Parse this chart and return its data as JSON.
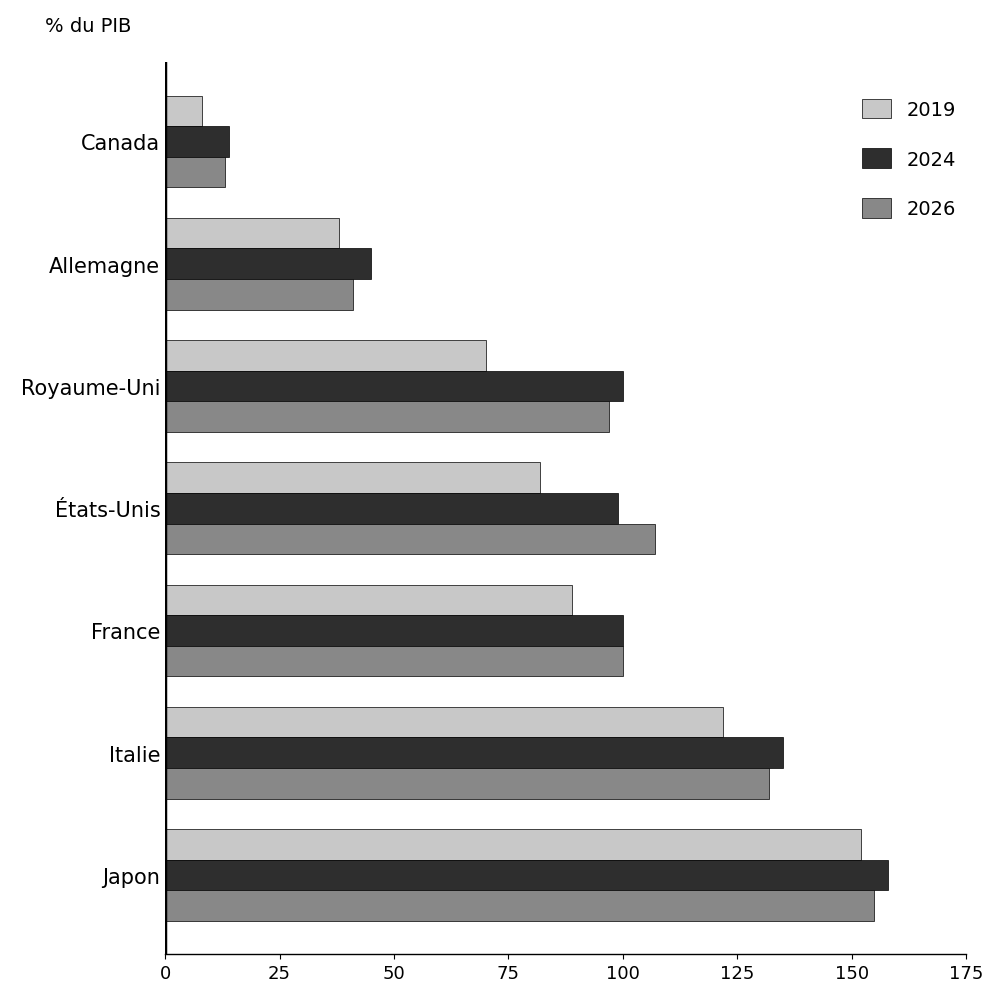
{
  "categories": [
    "Japon",
    "Italie",
    "France",
    "États-Unis",
    "Royaume-Uni",
    "Allemagne",
    "Canada"
  ],
  "series": {
    "2019": [
      152,
      122,
      89,
      82,
      70,
      38,
      8
    ],
    "2024": [
      158,
      135,
      100,
      99,
      100,
      45,
      14
    ],
    "2026": [
      155,
      132,
      100,
      107,
      97,
      41,
      13
    ]
  },
  "colors": {
    "2019": "#c8c8c8",
    "2024": "#2e2e2e",
    "2026": "#888888"
  },
  "ylabel": "% du PIB",
  "xlim": [
    0,
    175
  ],
  "xticks": [
    0,
    25,
    50,
    75,
    100,
    125,
    150,
    175
  ],
  "background_color": "#ffffff",
  "bar_height": 0.25,
  "legend_fontsize": 14,
  "label_fontsize": 15,
  "tick_fontsize": 13,
  "ylabel_fontsize": 14
}
